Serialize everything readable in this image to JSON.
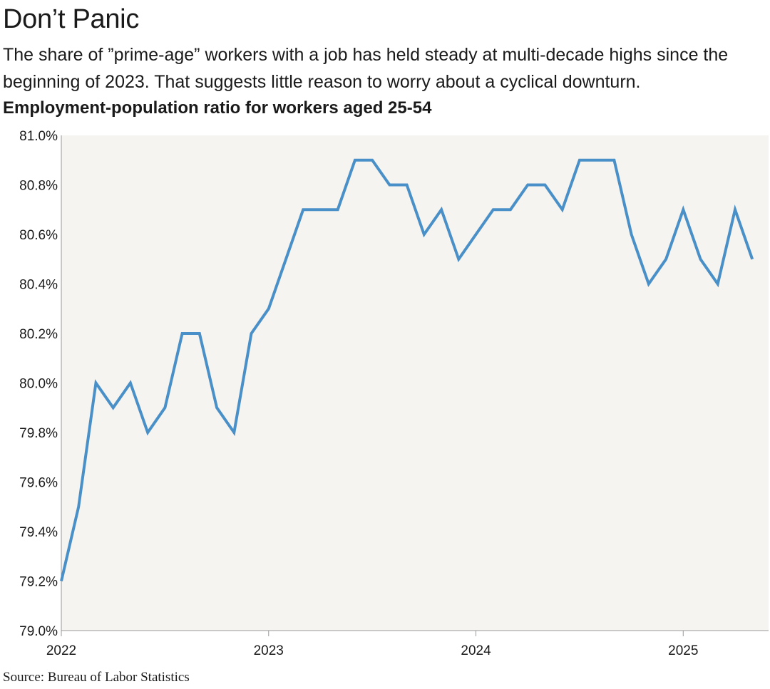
{
  "header": {
    "title": "Don’t Panic",
    "subtitle": "The share of ”prime-age” workers with a job has held steady at multi-decade highs since the beginning of 2023. That suggests little reason to worry about a cyclical downturn.",
    "chart_label": "Employment-population ratio for workers aged 25-54"
  },
  "footer": {
    "source": "Source: Bureau of Labor Statistics"
  },
  "colors": {
    "line": "#4a90c8",
    "plot_bg": "#f6f4f1",
    "axis": "#999999"
  },
  "chart_data": {
    "type": "line",
    "title": "Employment-population ratio for workers aged 25-54",
    "xlabel": "",
    "ylabel": "",
    "ylim": [
      79.0,
      81.0
    ],
    "y_ticks": [
      "79.0%",
      "79.2%",
      "79.4%",
      "79.6%",
      "79.8%",
      "80.0%",
      "80.2%",
      "80.4%",
      "80.6%",
      "80.8%",
      "81.0%"
    ],
    "x_ticks": [
      "2022",
      "2023",
      "2024",
      "2025"
    ],
    "grid": false,
    "series": [
      {
        "x": [
          "2022-01",
          "2022-02",
          "2022-03",
          "2022-04",
          "2022-05",
          "2022-06",
          "2022-07",
          "2022-08",
          "2022-09",
          "2022-10",
          "2022-11",
          "2022-12",
          "2023-01",
          "2023-02",
          "2023-03",
          "2023-04",
          "2023-05",
          "2023-06",
          "2023-07",
          "2023-08",
          "2023-09",
          "2023-10",
          "2023-11",
          "2023-12",
          "2024-01",
          "2024-02",
          "2024-03",
          "2024-04",
          "2024-05",
          "2024-06",
          "2024-07",
          "2024-08",
          "2024-09",
          "2024-10",
          "2024-11",
          "2024-12",
          "2025-01",
          "2025-02",
          "2025-03",
          "2025-04",
          "2025-05"
        ],
        "values": [
          79.2,
          79.5,
          80.0,
          79.9,
          80.0,
          79.8,
          79.9,
          80.2,
          80.2,
          79.9,
          79.8,
          80.2,
          80.3,
          80.5,
          80.7,
          80.7,
          80.7,
          80.9,
          80.9,
          80.8,
          80.8,
          80.6,
          80.7,
          80.5,
          80.6,
          80.7,
          80.7,
          80.8,
          80.8,
          80.7,
          80.9,
          80.9,
          80.9,
          80.6,
          80.4,
          80.5,
          80.7,
          80.5,
          80.4,
          80.7,
          80.5
        ]
      }
    ]
  }
}
